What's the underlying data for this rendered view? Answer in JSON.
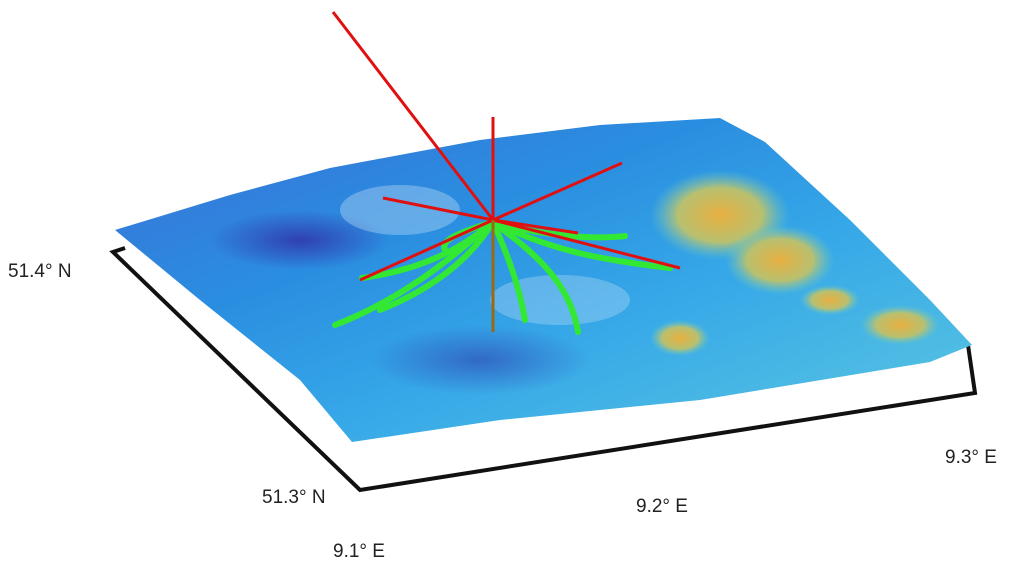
{
  "axis_labels": {
    "latitude": [
      "51.4° N",
      "51.3° N"
    ],
    "longitude": [
      "9.1° E",
      "9.2° E",
      "9.3° E"
    ]
  }
}
